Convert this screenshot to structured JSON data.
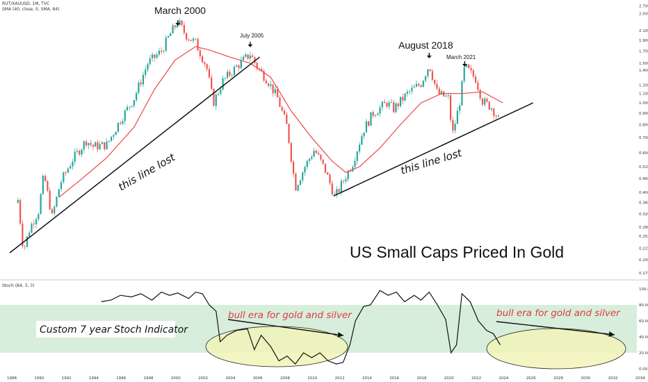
{
  "header": {
    "symbol_line": "RUT/XAUUSD, 1M, TVC",
    "sma_line": "SMA (40, close, 0, SMA, 84)",
    "stoch_line": "Stoch (84, 3, 3)"
  },
  "colors": {
    "up": "#26a69a",
    "down": "#ef5350",
    "sma": "#ef4444",
    "stoch": "#111111",
    "band": "#d7eedc",
    "ellipse_fill": "#f1f3b8",
    "annotation_red": "#e23a3a"
  },
  "annotations": {
    "march_2000": "March 2000",
    "july_2005": "July 2005",
    "august_2018": "August 2018",
    "march_2021": "March 2021",
    "line_lost_1": "this line lost",
    "line_lost_2": "this line lost",
    "main_title": "US Small Caps Priced In Gold",
    "bull_era_1": "bull era for gold and silver",
    "bull_era_2": "bull era for gold and silver",
    "stoch_label": "Custom 7 year Stoch Indicator"
  },
  "chart_data": [
    {
      "type": "candlestick",
      "title": "RUT/XAUUSD, 1M, TVC",
      "scale": "log",
      "ylim": [
        0.17,
        2.75
      ],
      "xlim": [
        1987.5,
        2035
      ],
      "y_ticks": [
        "2.7000",
        "2.5000",
        "2.1000",
        "1.9000",
        "1.7000",
        "1.5000",
        "1.4000",
        "1.2000",
        "1.1000",
        "1.0000",
        "0.9000",
        "0.8000",
        "0.7000",
        "0.6000",
        "0.5200",
        "0.4600",
        "0.4000",
        "0.3600",
        "0.3200",
        "0.2800",
        "0.2550",
        "0.2250",
        "0.2000",
        "0.1750"
      ],
      "x_ticks": [
        "1988",
        "1990",
        "1992",
        "1994",
        "1996",
        "1998",
        "2000",
        "2002",
        "2004",
        "2006",
        "2008",
        "2010",
        "2012",
        "2014",
        "2016",
        "2018",
        "2020",
        "2022",
        "2024",
        "2026",
        "2028",
        "2030",
        "2032",
        "2034"
      ],
      "price_path": [
        [
          1988.5,
          0.37
        ],
        [
          1988.9,
          0.22
        ],
        [
          1989.4,
          0.28
        ],
        [
          1990.0,
          0.33
        ],
        [
          1990.4,
          0.48
        ],
        [
          1991.0,
          0.31
        ],
        [
          1991.6,
          0.44
        ],
        [
          1992.5,
          0.56
        ],
        [
          1993.5,
          0.68
        ],
        [
          1994.0,
          0.64
        ],
        [
          1995.0,
          0.65
        ],
        [
          1996.0,
          0.84
        ],
        [
          1997.0,
          1.05
        ],
        [
          1998.0,
          1.5
        ],
        [
          1999.0,
          1.7
        ],
        [
          1999.6,
          2.0
        ],
        [
          2000.2,
          2.3
        ],
        [
          2000.8,
          2.0
        ],
        [
          2001.5,
          1.85
        ],
        [
          2002.3,
          1.45
        ],
        [
          2002.8,
          1.0
        ],
        [
          2003.5,
          1.25
        ],
        [
          2004.5,
          1.45
        ],
        [
          2005.5,
          1.65
        ],
        [
          2006.0,
          1.45
        ],
        [
          2006.8,
          1.25
        ],
        [
          2007.5,
          1.05
        ],
        [
          2008.2,
          0.78
        ],
        [
          2008.8,
          0.42
        ],
        [
          2009.5,
          0.52
        ],
        [
          2010.2,
          0.62
        ],
        [
          2011.0,
          0.5
        ],
        [
          2011.7,
          0.38
        ],
        [
          2012.4,
          0.46
        ],
        [
          2013.0,
          0.54
        ],
        [
          2013.8,
          0.76
        ],
        [
          2014.5,
          0.9
        ],
        [
          2015.5,
          1.0
        ],
        [
          2016.0,
          0.94
        ],
        [
          2017.0,
          1.1
        ],
        [
          2018.0,
          1.22
        ],
        [
          2018.6,
          1.48
        ],
        [
          2019.2,
          1.1
        ],
        [
          2020.0,
          1.05
        ],
        [
          2020.3,
          0.72
        ],
        [
          2020.8,
          0.98
        ],
        [
          2021.2,
          1.45
        ],
        [
          2022.0,
          1.28
        ],
        [
          2022.5,
          1.02
        ],
        [
          2023.2,
          0.95
        ],
        [
          2023.8,
          0.82
        ]
      ],
      "sma_path": [
        [
          1991.5,
          0.38
        ],
        [
          1993.0,
          0.45
        ],
        [
          1995.0,
          0.57
        ],
        [
          1997.0,
          0.78
        ],
        [
          1998.5,
          1.15
        ],
        [
          2000.0,
          1.55
        ],
        [
          2001.5,
          1.78
        ],
        [
          2002.5,
          1.72
        ],
        [
          2004.0,
          1.6
        ],
        [
          2005.5,
          1.5
        ],
        [
          2007.0,
          1.3
        ],
        [
          2008.5,
          0.92
        ],
        [
          2010.0,
          0.7
        ],
        [
          2011.5,
          0.55
        ],
        [
          2012.5,
          0.49
        ],
        [
          2013.5,
          0.52
        ],
        [
          2015.0,
          0.63
        ],
        [
          2016.5,
          0.8
        ],
        [
          2018.0,
          1.0
        ],
        [
          2019.5,
          1.1
        ],
        [
          2021.0,
          1.1
        ],
        [
          2022.5,
          1.12
        ],
        [
          2024.0,
          1.0
        ]
      ],
      "trendlines": [
        {
          "from": [
            1987.9,
            0.215
          ],
          "to": [
            2006.2,
            1.6
          ]
        },
        {
          "from": [
            2011.6,
            0.385
          ],
          "to": [
            2026.2,
            1.0
          ]
        }
      ],
      "markers": [
        {
          "x": 2000.2,
          "label": "March 2000"
        },
        {
          "x": 2005.5,
          "label": "July 2005"
        },
        {
          "x": 2018.6,
          "label": "August 2018"
        },
        {
          "x": 2021.2,
          "label": "March 2021"
        }
      ]
    },
    {
      "type": "line",
      "title": "Stoch (84, 3, 3)",
      "ylim": [
        0,
        100
      ],
      "y_ticks": [
        "100.00",
        "80.00",
        "60.00",
        "40.00",
        "20.00",
        "0.00"
      ],
      "band": [
        20,
        80
      ],
      "series": [
        {
          "values": [
            [
              1994.6,
              84
            ],
            [
              1995.3,
              86
            ],
            [
              1996.0,
              92
            ],
            [
              1996.8,
              90
            ],
            [
              1997.5,
              94
            ],
            [
              1998.3,
              86
            ],
            [
              1999.0,
              96
            ],
            [
              1999.6,
              92
            ],
            [
              2000.2,
              95
            ],
            [
              2001.0,
              88
            ],
            [
              2001.5,
              96
            ],
            [
              2002.0,
              94
            ],
            [
              2002.5,
              80
            ],
            [
              2003.0,
              72
            ],
            [
              2003.3,
              34
            ],
            [
              2003.8,
              42
            ],
            [
              2004.5,
              48
            ],
            [
              2005.3,
              50
            ],
            [
              2005.8,
              24
            ],
            [
              2006.3,
              42
            ],
            [
              2007.0,
              28
            ],
            [
              2007.6,
              10
            ],
            [
              2008.2,
              16
            ],
            [
              2008.8,
              6
            ],
            [
              2009.4,
              20
            ],
            [
              2010.0,
              14
            ],
            [
              2010.6,
              20
            ],
            [
              2011.2,
              10
            ],
            [
              2011.8,
              6
            ],
            [
              2012.3,
              8
            ],
            [
              2012.8,
              30
            ],
            [
              2013.2,
              60
            ],
            [
              2013.8,
              78
            ],
            [
              2014.3,
              80
            ],
            [
              2015.0,
              98
            ],
            [
              2015.6,
              92
            ],
            [
              2016.2,
              96
            ],
            [
              2016.8,
              84
            ],
            [
              2017.5,
              92
            ],
            [
              2018.0,
              86
            ],
            [
              2018.6,
              96
            ],
            [
              2019.2,
              80
            ],
            [
              2019.8,
              62
            ],
            [
              2020.2,
              20
            ],
            [
              2020.6,
              30
            ],
            [
              2021.0,
              94
            ],
            [
              2021.6,
              84
            ],
            [
              2022.2,
              60
            ],
            [
              2022.8,
              48
            ],
            [
              2023.3,
              44
            ],
            [
              2023.8,
              30
            ]
          ]
        }
      ]
    }
  ]
}
